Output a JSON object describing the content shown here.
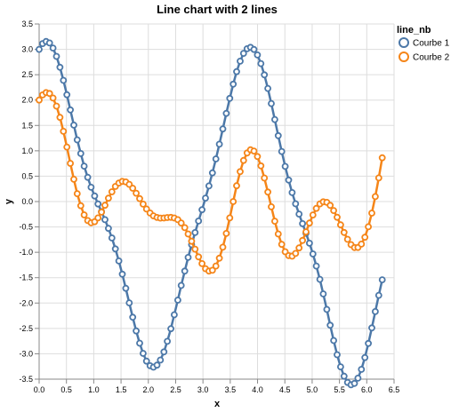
{
  "chart_data": {
    "type": "line",
    "title": "Line chart with 2 lines",
    "xlabel": "x",
    "ylabel": "y",
    "xlim": [
      0,
      6.5
    ],
    "ylim": [
      -3.5,
      3.5
    ],
    "x_ticks": [
      "0.0",
      "0.5",
      "1.0",
      "1.5",
      "2.0",
      "2.5",
      "3.0",
      "3.5",
      "4.0",
      "4.5",
      "5.0",
      "5.5",
      "6.0",
      "6.5"
    ],
    "y_ticks": [
      "3.5",
      "3.0",
      "2.5",
      "2.0",
      "1.5",
      "1.0",
      "0.5",
      "0.0",
      "-0.5",
      "-1.0",
      "-1.5",
      "-2.0",
      "-2.5",
      "-3.0",
      "-3.5"
    ],
    "grid": true,
    "legend_title": "line_nb",
    "legend_position": "top-right",
    "x": [
      0.0,
      0.063,
      0.127,
      0.19,
      0.254,
      0.317,
      0.381,
      0.444,
      0.508,
      0.571,
      0.635,
      0.698,
      0.762,
      0.825,
      0.889,
      0.952,
      1.016,
      1.079,
      1.142,
      1.206,
      1.269,
      1.333,
      1.396,
      1.46,
      1.523,
      1.587,
      1.65,
      1.714,
      1.777,
      1.841,
      1.904,
      1.967,
      2.031,
      2.094,
      2.158,
      2.221,
      2.285,
      2.348,
      2.412,
      2.475,
      2.539,
      2.602,
      2.666,
      2.729,
      2.792,
      2.856,
      2.919,
      2.983,
      3.046,
      3.11,
      3.173,
      3.237,
      3.3,
      3.364,
      3.427,
      3.491,
      3.554,
      3.617,
      3.681,
      3.744,
      3.808,
      3.871,
      3.935,
      3.998,
      4.062,
      4.125,
      4.189,
      4.252,
      4.316,
      4.379,
      4.443,
      4.506,
      4.569,
      4.633,
      4.696,
      4.76,
      4.823,
      4.887,
      4.95,
      5.014,
      5.077,
      5.141,
      5.204,
      5.268,
      5.331,
      5.394,
      5.458,
      5.521,
      5.585,
      5.648,
      5.712,
      5.775,
      5.839,
      5.902,
      5.966,
      6.029,
      6.093,
      6.156,
      6.22,
      6.283
    ],
    "series": [
      {
        "name": "Courbe 1",
        "color": "#4c78a8",
        "values": [
          3.0,
          3.113,
          3.155,
          3.125,
          3.025,
          2.862,
          2.646,
          2.389,
          2.105,
          1.806,
          1.507,
          1.217,
          0.946,
          0.699,
          0.477,
          0.282,
          0.11,
          -0.047,
          -0.199,
          -0.357,
          -0.528,
          -0.718,
          -0.932,
          -1.171,
          -1.432,
          -1.71,
          -1.996,
          -2.28,
          -2.549,
          -2.791,
          -2.993,
          -3.144,
          -3.236,
          -3.263,
          -3.224,
          -3.123,
          -2.963,
          -2.754,
          -2.506,
          -2.232,
          -1.943,
          -1.653,
          -1.37,
          -1.101,
          -0.848,
          -0.611,
          -0.384,
          -0.161,
          0.068,
          0.308,
          0.565,
          0.84,
          1.131,
          1.432,
          1.737,
          2.034,
          2.313,
          2.561,
          2.767,
          2.92,
          3.012,
          3.039,
          2.997,
          2.89,
          2.72,
          2.497,
          2.23,
          1.932,
          1.617,
          1.298,
          0.987,
          0.693,
          0.423,
          0.177,
          -0.044,
          -0.246,
          -0.436,
          -0.624,
          -0.82,
          -1.033,
          -1.27,
          -1.533,
          -1.82,
          -2.126,
          -2.437,
          -2.739,
          -3.018,
          -3.257,
          -3.443,
          -3.564,
          -3.612,
          -3.584,
          -3.481,
          -3.308,
          -3.075,
          -2.797,
          -2.49,
          -2.169,
          -1.848,
          -1.541
        ]
      },
      {
        "name": "Courbe 2",
        "color": "#f58518",
        "values": [
          2.0,
          2.101,
          2.148,
          2.13,
          2.041,
          1.882,
          1.659,
          1.384,
          1.075,
          0.752,
          0.439,
          0.155,
          -0.083,
          -0.262,
          -0.374,
          -0.418,
          -0.397,
          -0.322,
          -0.208,
          -0.073,
          0.066,
          0.193,
          0.297,
          0.366,
          0.397,
          0.387,
          0.34,
          0.263,
          0.165,
          0.057,
          -0.05,
          -0.147,
          -0.226,
          -0.282,
          -0.314,
          -0.325,
          -0.323,
          -0.315,
          -0.312,
          -0.323,
          -0.357,
          -0.421,
          -0.515,
          -0.638,
          -0.782,
          -0.938,
          -1.09,
          -1.224,
          -1.323,
          -1.37,
          -1.355,
          -1.271,
          -1.117,
          -0.899,
          -0.628,
          -0.322,
          0.0,
          0.312,
          0.589,
          0.81,
          0.957,
          1.02,
          0.996,
          0.887,
          0.704,
          0.464,
          0.187,
          -0.104,
          -0.386,
          -0.638,
          -0.843,
          -0.988,
          -1.066,
          -1.076,
          -1.022,
          -0.914,
          -0.767,
          -0.597,
          -0.424,
          -0.265,
          -0.135,
          -0.046,
          -0.005,
          -0.016,
          -0.076,
          -0.177,
          -0.309,
          -0.458,
          -0.609,
          -0.744,
          -0.848,
          -0.906,
          -0.905,
          -0.839,
          -0.703,
          -0.497,
          -0.227,
          0.098,
          0.466,
          0.862
        ]
      }
    ]
  }
}
